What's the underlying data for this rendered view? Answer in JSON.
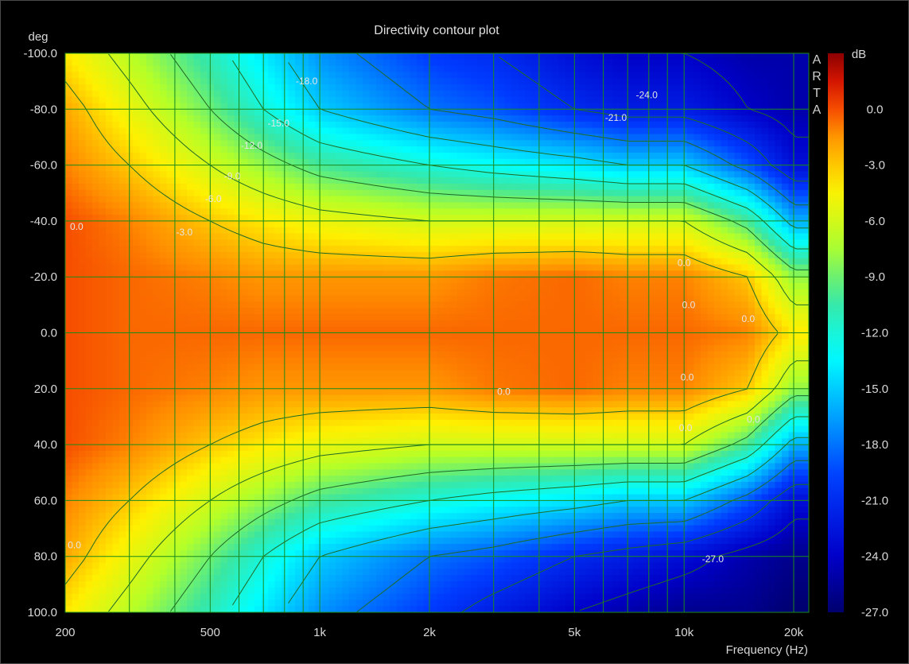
{
  "chart_data": {
    "type": "heatmap",
    "title": "Directivity contour plot",
    "xlabel": "Frequency (Hz)",
    "ylabel": "deg",
    "x_scale": "log",
    "xlim": [
      200,
      22000
    ],
    "ylim": [
      -100,
      100
    ],
    "x_ticks": [
      {
        "value": 200,
        "label": "200"
      },
      {
        "value": 500,
        "label": "500"
      },
      {
        "value": 1000,
        "label": "1k"
      },
      {
        "value": 2000,
        "label": "2k"
      },
      {
        "value": 5000,
        "label": "5k"
      },
      {
        "value": 10000,
        "label": "10k"
      },
      {
        "value": 20000,
        "label": "20k"
      }
    ],
    "x_grid": [
      200,
      300,
      400,
      500,
      600,
      700,
      800,
      900,
      1000,
      2000,
      3000,
      4000,
      5000,
      6000,
      7000,
      8000,
      9000,
      10000,
      20000
    ],
    "y_ticks": [
      {
        "value": -100,
        "label": "-100.0"
      },
      {
        "value": -80,
        "label": "-80.0"
      },
      {
        "value": -60,
        "label": "-60.0"
      },
      {
        "value": -40,
        "label": "-40.0"
      },
      {
        "value": -20,
        "label": "-20.0"
      },
      {
        "value": 0,
        "label": "0.0"
      },
      {
        "value": 20,
        "label": "20.0"
      },
      {
        "value": 40,
        "label": "40.0"
      },
      {
        "value": 60,
        "label": "60.0"
      },
      {
        "value": 80,
        "label": "80.0"
      },
      {
        "value": 100,
        "label": "100.0"
      }
    ],
    "colorbar": {
      "unit": "dB",
      "range": [
        -27,
        3
      ],
      "ticks": [
        {
          "value": 0,
          "label": "0.0"
        },
        {
          "value": -3,
          "label": "-3.0"
        },
        {
          "value": -6,
          "label": "-6.0"
        },
        {
          "value": -9,
          "label": "-9.0"
        },
        {
          "value": -12,
          "label": "-12.0"
        },
        {
          "value": -15,
          "label": "-15.0"
        },
        {
          "value": -18,
          "label": "-18.0"
        },
        {
          "value": -21,
          "label": "-21.0"
        },
        {
          "value": -24,
          "label": "-24.0"
        },
        {
          "value": -27,
          "label": "-27.0"
        }
      ]
    },
    "contour_levels": [
      0,
      -3,
      -6,
      -9,
      -12,
      -15,
      -18,
      -21,
      -24,
      -27
    ],
    "contour_labels": [
      {
        "text": "0.0",
        "freq": 215,
        "deg": -38
      },
      {
        "text": "-3.0",
        "freq": 425,
        "deg": -36
      },
      {
        "text": "-6.0",
        "freq": 510,
        "deg": -48
      },
      {
        "text": "-9.0",
        "freq": 575,
        "deg": -56
      },
      {
        "text": "-12.0",
        "freq": 650,
        "deg": -67
      },
      {
        "text": "-15.0",
        "freq": 770,
        "deg": -75
      },
      {
        "text": "-18.0",
        "freq": 920,
        "deg": -90
      },
      {
        "text": "-21.0",
        "freq": 6500,
        "deg": -77
      },
      {
        "text": "-24.0",
        "freq": 7900,
        "deg": -85
      },
      {
        "text": "0.0",
        "freq": 10000,
        "deg": -25
      },
      {
        "text": "0.0",
        "freq": 10300,
        "deg": -10
      },
      {
        "text": "0.0",
        "freq": 15000,
        "deg": -5
      },
      {
        "text": "0.0",
        "freq": 3200,
        "deg": 21
      },
      {
        "text": "0.0",
        "freq": 10200,
        "deg": 16
      },
      {
        "text": "0.0",
        "freq": 10100,
        "deg": 34
      },
      {
        "text": "0.0",
        "freq": 15500,
        "deg": 31
      },
      {
        "text": "0.0",
        "freq": 212,
        "deg": 76
      },
      {
        "text": "-27.0",
        "freq": 12000,
        "deg": 81
      }
    ],
    "values_dB": {
      "freqs": [
        200,
        300,
        500,
        700,
        1000,
        2000,
        3000,
        5000,
        7000,
        10000,
        15000,
        20000
      ],
      "angles": [
        -100,
        -80,
        -60,
        -40,
        -20,
        0,
        20,
        40,
        60,
        80,
        100
      ],
      "z": [
        [
          -4,
          -7,
          -11,
          -14,
          -17,
          -20,
          -21,
          -23,
          -24,
          -24,
          -25,
          -25
        ],
        [
          -2,
          -5,
          -9,
          -12,
          -15,
          -18,
          -19,
          -21,
          -22,
          -22,
          -24,
          -25
        ],
        [
          -1,
          -3,
          -6,
          -8,
          -10,
          -12,
          -13,
          -14,
          -15,
          -15,
          -19,
          -23
        ],
        [
          0,
          -1,
          -3,
          -4,
          -5,
          -6,
          -6,
          -6,
          -6,
          -6,
          -10,
          -16
        ],
        [
          0,
          -0.5,
          -1,
          -1.5,
          -1.5,
          -1.5,
          -0.8,
          -0.5,
          -1,
          -1,
          -3,
          -8
        ],
        [
          0,
          -0.5,
          -0.5,
          -0.5,
          -0.5,
          -0.5,
          -0.5,
          -0.5,
          -0.5,
          -0.5,
          -1,
          -4
        ],
        [
          0,
          -0.5,
          -1,
          -1.5,
          -1.5,
          -1.5,
          -0.8,
          -0.5,
          -1,
          -1,
          -3,
          -8
        ],
        [
          0,
          -1,
          -3,
          -4,
          -5,
          -6,
          -6,
          -6,
          -6,
          -6,
          -10,
          -16
        ],
        [
          -1,
          -3,
          -6,
          -8,
          -10,
          -12,
          -13,
          -14,
          -15,
          -15,
          -19,
          -23
        ],
        [
          -2,
          -5,
          -9,
          -12,
          -15,
          -18,
          -19,
          -21,
          -22,
          -23,
          -25,
          -26
        ],
        [
          -4,
          -7,
          -11,
          -14,
          -17,
          -20,
          -22,
          -24,
          -25,
          -26,
          -26,
          -27
        ]
      ]
    },
    "brand_text": "ARTA",
    "grid": true,
    "legend": "right-colorbar"
  }
}
